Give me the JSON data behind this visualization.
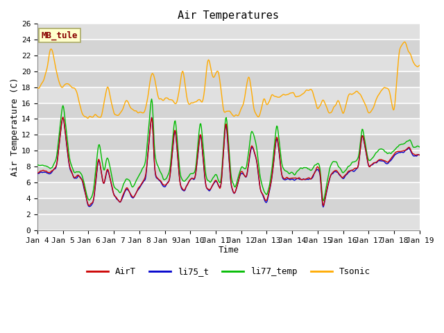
{
  "title": "Air Temperatures",
  "xlabel": "Time",
  "ylabel": "Air Temperature (C)",
  "ylim": [
    0,
    26
  ],
  "yticks": [
    0,
    2,
    4,
    6,
    8,
    10,
    12,
    14,
    16,
    18,
    20,
    22,
    24,
    26
  ],
  "series_colors": {
    "AirT": "#cc0000",
    "li75_t": "#0000cc",
    "li77_temp": "#00bb00",
    "Tsonic": "#ffaa00"
  },
  "legend_labels": [
    "AirT",
    "li75_t",
    "li77_temp",
    "Tsonic"
  ],
  "annotation_text": "MB_tule",
  "annotation_color": "#880000",
  "annotation_bg": "#ffffcc",
  "annotation_border": "#aaaa66",
  "bg_color": "#ffffff",
  "plot_bg_light": "#e8e8e8",
  "plot_bg_dark": "#d0d0d0",
  "grid_color": "#ffffff",
  "airt_kp_x": [
    0,
    0.25,
    0.5,
    0.75,
    1.0,
    1.25,
    1.45,
    1.6,
    1.75,
    2.0,
    2.2,
    2.4,
    2.6,
    2.75,
    3.0,
    3.25,
    3.5,
    3.75,
    4.0,
    4.25,
    4.5,
    4.6,
    4.75,
    5.0,
    5.2,
    5.4,
    5.6,
    5.75,
    6.0,
    6.2,
    6.4,
    6.6,
    6.75,
    7.0,
    7.2,
    7.4,
    7.6,
    7.75,
    8.0,
    8.2,
    8.4,
    8.5,
    8.6,
    8.75,
    9.0,
    9.2,
    9.4,
    9.6,
    9.75,
    10.0,
    10.2,
    10.4,
    10.6,
    10.75,
    11.0,
    11.1,
    11.2,
    11.35,
    11.5,
    11.65,
    11.75,
    12.0,
    12.2,
    12.4,
    12.6,
    12.75,
    13.0,
    13.25,
    13.5,
    13.75,
    14.0,
    14.2,
    14.4,
    14.6,
    14.75,
    15.0
  ],
  "airt_kp_y": [
    7.2,
    7.5,
    7.2,
    8.0,
    15.0,
    8.0,
    6.5,
    7.0,
    6.5,
    3.0,
    3.5,
    9.5,
    5.5,
    8.0,
    4.5,
    3.5,
    5.5,
    4.0,
    5.5,
    6.5,
    15.5,
    7.0,
    6.5,
    5.5,
    6.5,
    13.5,
    5.5,
    5.0,
    6.5,
    6.5,
    13.0,
    5.5,
    5.0,
    6.5,
    5.0,
    14.5,
    5.5,
    4.5,
    7.5,
    6.5,
    11.0,
    10.0,
    9.0,
    5.0,
    3.5,
    6.5,
    12.5,
    6.5,
    6.5,
    6.5,
    6.5,
    6.5,
    6.5,
    6.5,
    8.0,
    7.5,
    2.5,
    5.0,
    7.0,
    7.5,
    7.5,
    6.5,
    7.5,
    7.5,
    8.0,
    12.5,
    8.0,
    8.5,
    9.0,
    8.5,
    9.5,
    10.0,
    10.0,
    10.5,
    9.5,
    9.5
  ],
  "li77_offset_kp_x": [
    0,
    0.5,
    1.0,
    1.45,
    2.0,
    2.5,
    3.0,
    4.0,
    4.5,
    5.0,
    5.5,
    6.0,
    6.5,
    7.0,
    7.5,
    8.0,
    8.5,
    9.0,
    9.5,
    10.0,
    10.5,
    11.0,
    11.35,
    11.5,
    12.0,
    12.5,
    13.0,
    13.5,
    14.0,
    14.5,
    15.0
  ],
  "li77_offset_kp_y": [
    1.0,
    0.5,
    1.5,
    0.5,
    0.5,
    2.0,
    1.0,
    1.5,
    2.5,
    0.5,
    1.5,
    0.5,
    1.5,
    0.5,
    1.0,
    0.5,
    2.0,
    0.5,
    1.5,
    0.5,
    1.5,
    0.5,
    0.5,
    1.5,
    0.5,
    1.0,
    0.5,
    1.5,
    0.5,
    1.0,
    1.0
  ],
  "tsonic_kp_x": [
    0,
    0.2,
    0.4,
    0.5,
    0.6,
    0.75,
    0.9,
    1.0,
    1.15,
    1.3,
    1.5,
    1.75,
    2.0,
    2.25,
    2.5,
    2.75,
    3.0,
    3.25,
    3.5,
    3.75,
    4.0,
    4.25,
    4.5,
    4.75,
    5.0,
    5.15,
    5.3,
    5.5,
    5.7,
    5.9,
    6.1,
    6.3,
    6.5,
    6.7,
    6.9,
    7.1,
    7.3,
    7.5,
    7.7,
    7.9,
    8.1,
    8.3,
    8.5,
    8.7,
    8.9,
    9.0,
    9.2,
    9.4,
    9.6,
    9.8,
    10.0,
    10.2,
    10.5,
    10.8,
    11.0,
    11.2,
    11.5,
    11.8,
    12.0,
    12.2,
    12.5,
    12.8,
    13.0,
    13.2,
    13.5,
    13.8,
    14.0,
    14.2,
    14.4,
    14.6,
    14.8,
    15.0
  ],
  "tsonic_kp_y": [
    17.5,
    18.5,
    20.5,
    23.0,
    22.5,
    20.0,
    18.0,
    18.0,
    18.5,
    18.0,
    18.0,
    14.5,
    14.0,
    14.5,
    14.0,
    18.5,
    14.5,
    14.5,
    16.5,
    15.0,
    14.7,
    15.0,
    20.5,
    16.5,
    16.5,
    16.5,
    16.3,
    16.0,
    20.7,
    16.0,
    16.0,
    16.5,
    16.0,
    22.0,
    19.0,
    20.5,
    15.0,
    15.0,
    14.5,
    14.5,
    16.0,
    20.0,
    15.0,
    14.0,
    17.0,
    15.5,
    17.0,
    16.8,
    17.0,
    17.0,
    17.5,
    16.5,
    17.5,
    17.5,
    15.0,
    16.5,
    14.5,
    16.5,
    14.5,
    17.0,
    17.5,
    16.5,
    14.5,
    15.5,
    18.0,
    18.0,
    14.5,
    22.5,
    24.0,
    22.5,
    20.5,
    20.5
  ]
}
